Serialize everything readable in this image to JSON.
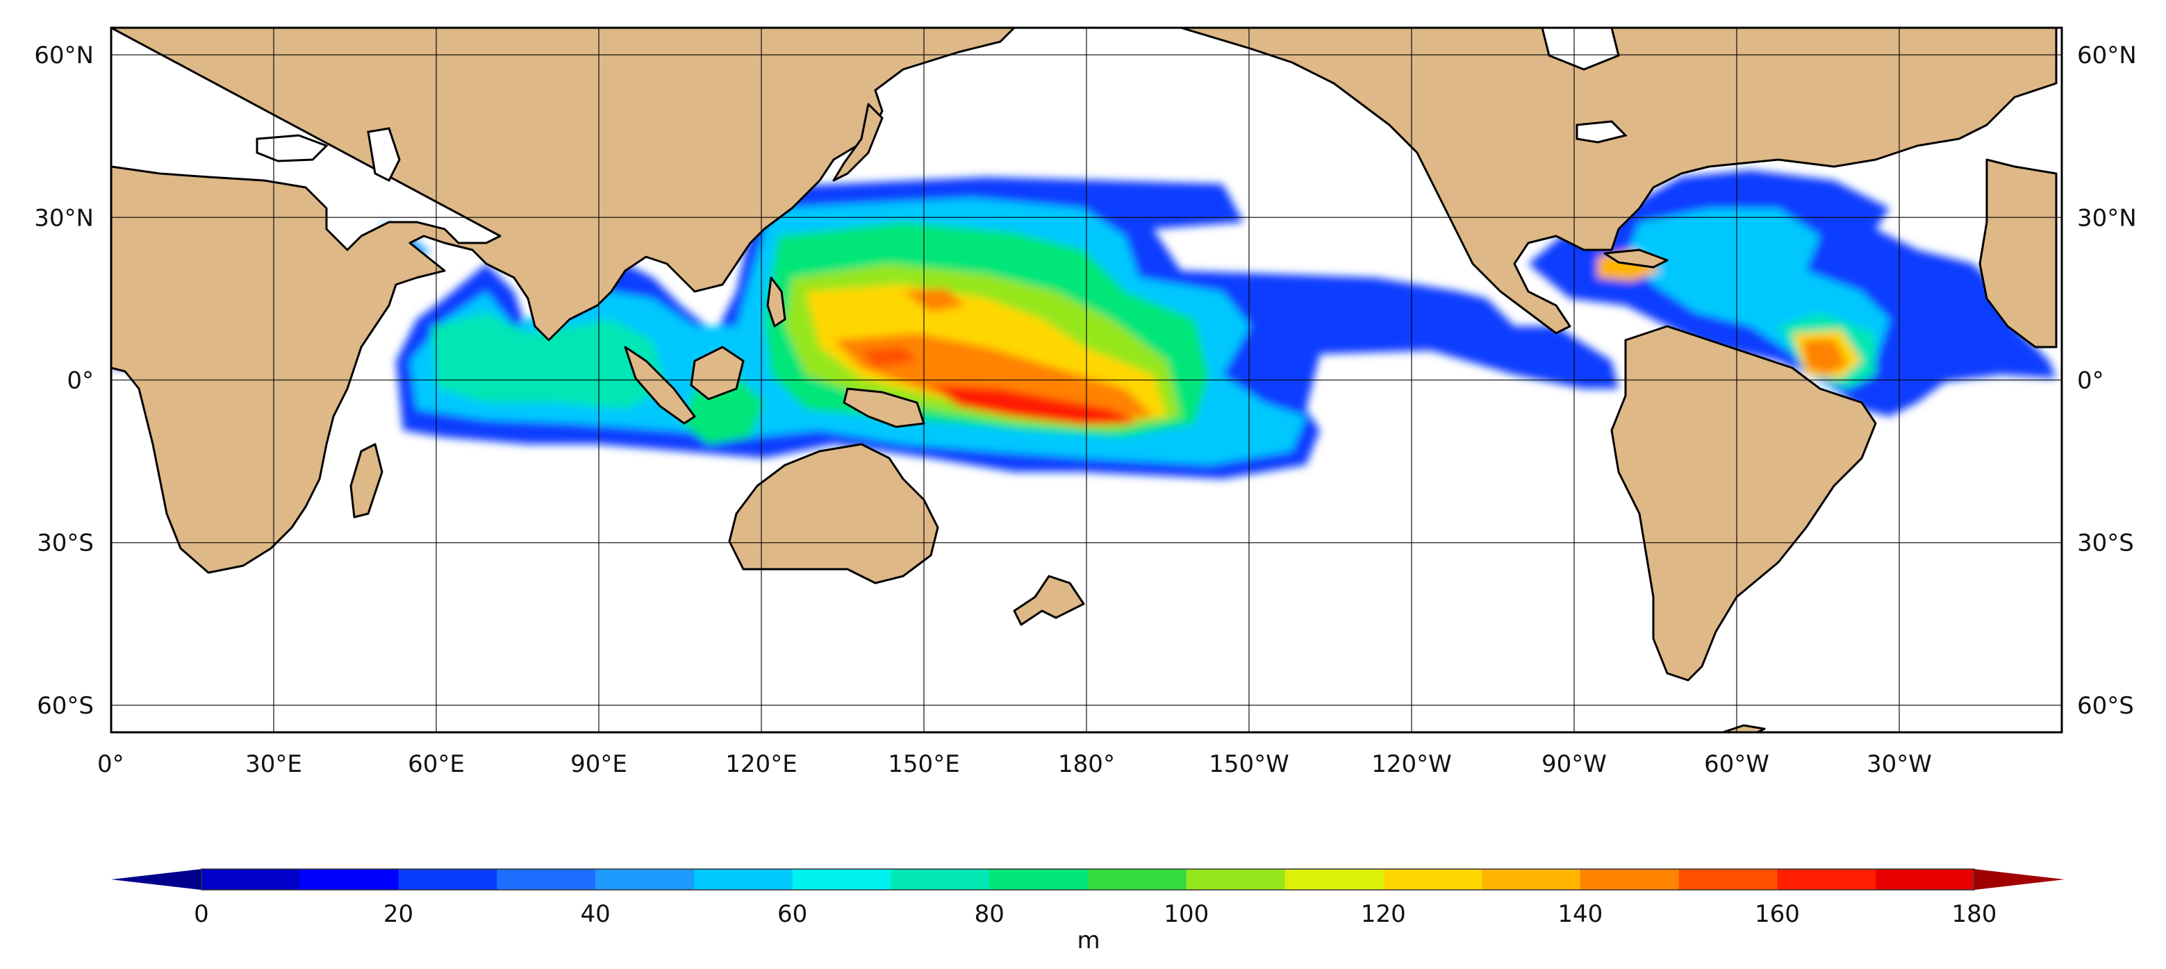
{
  "map": {
    "projection": "plate-carree",
    "lon_range": [
      0,
      360
    ],
    "lat_range": [
      -65,
      65
    ],
    "gridlines": true,
    "land_color": "#deb887",
    "ocean_no_data_color": "#ffffff",
    "lat_ticks": [
      {
        "lat": 60,
        "label": "60°N"
      },
      {
        "lat": 30,
        "label": "30°N"
      },
      {
        "lat": 0,
        "label": "0°"
      },
      {
        "lat": -30,
        "label": "30°S"
      },
      {
        "lat": -60,
        "label": "60°S"
      }
    ],
    "lon_ticks": [
      {
        "lon": 0,
        "label": "0°"
      },
      {
        "lon": 30,
        "label": "30°E"
      },
      {
        "lon": 60,
        "label": "60°E"
      },
      {
        "lon": 90,
        "label": "90°E"
      },
      {
        "lon": 120,
        "label": "120°E"
      },
      {
        "lon": 150,
        "label": "150°E"
      },
      {
        "lon": 180,
        "label": "180°"
      },
      {
        "lon": 210,
        "label": "150°W"
      },
      {
        "lon": 240,
        "label": "120°W"
      },
      {
        "lon": 270,
        "label": "90°W"
      },
      {
        "lon": 300,
        "label": "60°W"
      },
      {
        "lon": 330,
        "label": "30°W"
      }
    ]
  },
  "colorbar": {
    "units": "m",
    "min": 0,
    "max": 180,
    "step": 10,
    "extend": "both",
    "tick_labels": [
      "0",
      "20",
      "40",
      "60",
      "80",
      "100",
      "120",
      "140",
      "160",
      "180"
    ],
    "colors": [
      "#0000c8",
      "#0000ff",
      "#0a3cff",
      "#1e6eff",
      "#1e9bff",
      "#00c8ff",
      "#00f0f0",
      "#00e6b4",
      "#00e678",
      "#32dc3c",
      "#96e61e",
      "#dcf00a",
      "#ffd700",
      "#ffb400",
      "#ff8200",
      "#ff5000",
      "#ff1e00",
      "#e60000"
    ],
    "under_color": "#00008c",
    "over_color": "#a00000"
  }
}
